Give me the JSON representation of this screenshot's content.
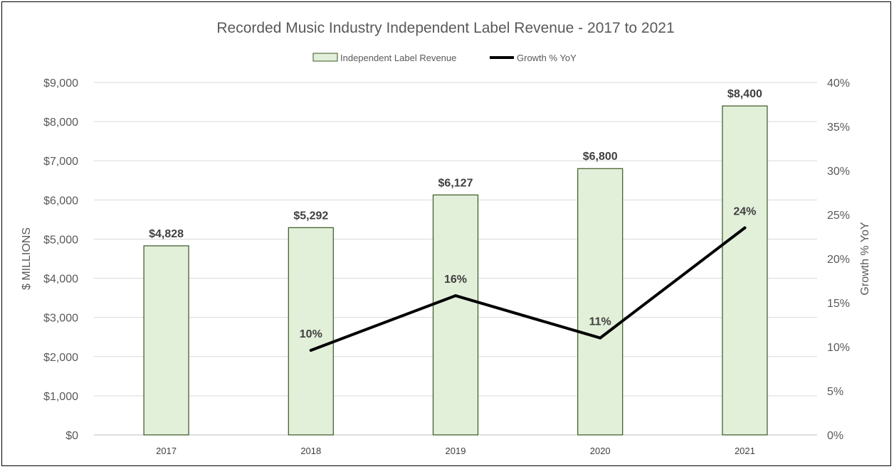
{
  "chart_data": {
    "type": "bar",
    "title": "Recorded Music Industry Independent Label Revenue - 2017 to 2021",
    "categories": [
      "2017",
      "2018",
      "2019",
      "2020",
      "2021"
    ],
    "series": [
      {
        "name": "Independent Label Revenue",
        "type": "bar",
        "axis": "left",
        "values": [
          4828,
          5292,
          6127,
          6800,
          8400
        ],
        "labels": [
          "$4,828",
          "$5,292",
          "$6,127",
          "$6,800",
          "$8,400"
        ]
      },
      {
        "name": "Growth % YoY",
        "type": "line",
        "axis": "right",
        "values": [
          null,
          9.6,
          15.8,
          11.0,
          23.5
        ],
        "labels": [
          "",
          "10%",
          "16%",
          "11%",
          "24%"
        ]
      }
    ],
    "ylabel": "$ MILLIONS",
    "ylabel_right": "Growth % YoY",
    "ylim": [
      0,
      9000
    ],
    "ylim_right": [
      0,
      40
    ],
    "yticks": [
      "$0",
      "$1,000",
      "$2,000",
      "$3,000",
      "$4,000",
      "$5,000",
      "$6,000",
      "$7,000",
      "$8,000",
      "$9,000"
    ],
    "yticks_right": [
      "0%",
      "5%",
      "10%",
      "15%",
      "20%",
      "25%",
      "30%",
      "35%",
      "40%"
    ],
    "grid": true,
    "legend_position": "top-center",
    "colors": {
      "bar_fill": "#e2efd9",
      "bar_stroke": "#375623",
      "line": "#000000",
      "grid": "#d9d9d9"
    }
  }
}
